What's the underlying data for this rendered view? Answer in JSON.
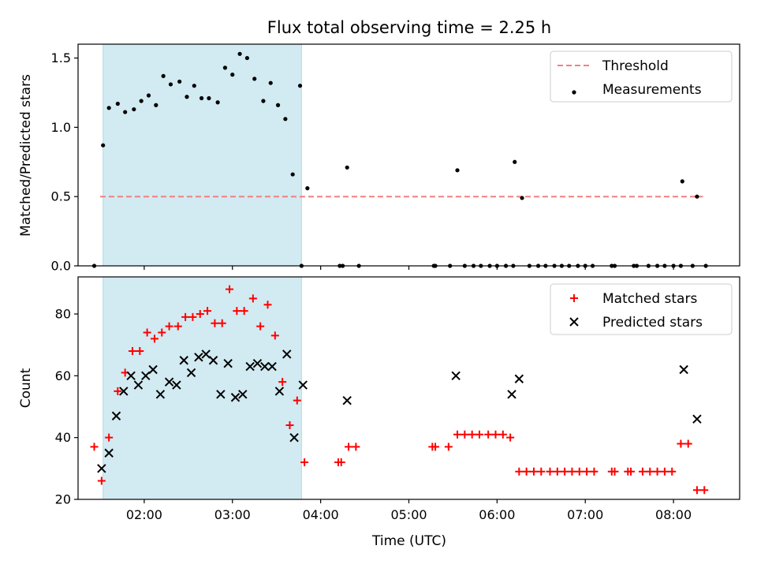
{
  "chart_data": [
    {
      "type": "scatter",
      "title": "Flux total observing time = 2.25 h",
      "ylabel": "Matched/Predicted stars",
      "xlabel": "",
      "xlim": [
        "01:15",
        "08:45"
      ],
      "ylim": [
        0,
        1.6
      ],
      "yticks": [
        "0.0",
        "0.5",
        "1.0",
        "1.5"
      ],
      "highlight_span": [
        "01:32",
        "03:47"
      ],
      "highlight_color": "#add8e6",
      "grid": false,
      "legend": "top-right",
      "legend_entries": [
        "Threshold",
        "Measurements"
      ],
      "threshold": {
        "name": "Threshold",
        "value": 0.5,
        "x": [
          "01:30",
          "08:20"
        ],
        "color": "#f08080",
        "style": "dashed"
      },
      "series": [
        {
          "name": "Measurements",
          "color": "#000000",
          "marker": "dot",
          "points": [
            [
              "01:26",
              0
            ],
            [
              "01:32",
              0.87
            ],
            [
              "01:36",
              1.14
            ],
            [
              "01:42",
              1.17
            ],
            [
              "01:47",
              1.11
            ],
            [
              "01:53",
              1.13
            ],
            [
              "01:58",
              1.19
            ],
            [
              "02:03",
              1.23
            ],
            [
              "02:08",
              1.16
            ],
            [
              "02:13",
              1.37
            ],
            [
              "02:18",
              1.31
            ],
            [
              "02:24",
              1.33
            ],
            [
              "02:29",
              1.22
            ],
            [
              "02:34",
              1.3
            ],
            [
              "02:39",
              1.21
            ],
            [
              "02:44",
              1.21
            ],
            [
              "02:50",
              1.18
            ],
            [
              "02:55",
              1.43
            ],
            [
              "03:00",
              1.38
            ],
            [
              "03:05",
              1.53
            ],
            [
              "03:10",
              1.5
            ],
            [
              "03:15",
              1.35
            ],
            [
              "03:21",
              1.19
            ],
            [
              "03:26",
              1.32
            ],
            [
              "03:31",
              1.16
            ],
            [
              "03:36",
              1.06
            ],
            [
              "03:41",
              0.66
            ],
            [
              "03:46",
              1.3
            ],
            [
              "03:51",
              0.56
            ],
            [
              "03:47",
              0
            ],
            [
              "04:13",
              0
            ],
            [
              "04:15",
              0
            ],
            [
              "04:18",
              0.71
            ],
            [
              "04:26",
              0
            ],
            [
              "05:17",
              0
            ],
            [
              "05:18",
              0
            ],
            [
              "05:28",
              0
            ],
            [
              "05:33",
              0.69
            ],
            [
              "05:38",
              0
            ],
            [
              "05:44",
              0
            ],
            [
              "05:49",
              0
            ],
            [
              "05:55",
              0
            ],
            [
              "06:00",
              0
            ],
            [
              "06:06",
              0
            ],
            [
              "06:11",
              0
            ],
            [
              "06:12",
              0.75
            ],
            [
              "06:17",
              0.49
            ],
            [
              "06:22",
              0
            ],
            [
              "06:28",
              0
            ],
            [
              "06:33",
              0
            ],
            [
              "06:39",
              0
            ],
            [
              "06:44",
              0
            ],
            [
              "06:49",
              0
            ],
            [
              "06:55",
              0
            ],
            [
              "07:00",
              0
            ],
            [
              "07:05",
              0
            ],
            [
              "07:18",
              0
            ],
            [
              "07:20",
              0
            ],
            [
              "07:33",
              0
            ],
            [
              "07:35",
              0
            ],
            [
              "07:43",
              0
            ],
            [
              "07:49",
              0
            ],
            [
              "07:54",
              0
            ],
            [
              "08:00",
              0
            ],
            [
              "08:05",
              0
            ],
            [
              "08:06",
              0.61
            ],
            [
              "08:13",
              0
            ],
            [
              "08:16",
              0.5
            ],
            [
              "08:22",
              0
            ]
          ]
        }
      ]
    },
    {
      "type": "scatter",
      "title": "",
      "ylabel": "Count",
      "xlabel": "Time (UTC)",
      "xlim": [
        "01:15",
        "08:45"
      ],
      "ylim": [
        20,
        92
      ],
      "yticks": [
        "20",
        "40",
        "60",
        "80"
      ],
      "xticks": [
        "02:00",
        "03:00",
        "04:00",
        "05:00",
        "06:00",
        "07:00",
        "08:00"
      ],
      "highlight_span": [
        "01:32",
        "03:47"
      ],
      "highlight_color": "#add8e6",
      "grid": false,
      "legend": "top-right",
      "legend_entries": [
        "Matched stars",
        "Predicted stars"
      ],
      "series": [
        {
          "name": "Matched stars",
          "color": "#ff0000",
          "marker": "plus",
          "points": [
            [
              "01:26",
              37
            ],
            [
              "01:31",
              26
            ],
            [
              "01:36",
              40
            ],
            [
              "01:42",
              55
            ],
            [
              "01:47",
              61
            ],
            [
              "01:52",
              68
            ],
            [
              "01:57",
              68
            ],
            [
              "02:02",
              74
            ],
            [
              "02:07",
              72
            ],
            [
              "02:12",
              74
            ],
            [
              "02:17",
              76
            ],
            [
              "02:23",
              76
            ],
            [
              "02:28",
              79
            ],
            [
              "02:33",
              79
            ],
            [
              "02:38",
              80
            ],
            [
              "02:43",
              81
            ],
            [
              "02:48",
              77
            ],
            [
              "02:53",
              77
            ],
            [
              "02:58",
              88
            ],
            [
              "03:03",
              81
            ],
            [
              "03:08",
              81
            ],
            [
              "03:14",
              85
            ],
            [
              "03:19",
              76
            ],
            [
              "03:24",
              83
            ],
            [
              "03:29",
              73
            ],
            [
              "03:34",
              58
            ],
            [
              "03:39",
              44
            ],
            [
              "03:44",
              52
            ],
            [
              "03:49",
              32
            ],
            [
              "04:12",
              32
            ],
            [
              "04:14",
              32
            ],
            [
              "04:19",
              37
            ],
            [
              "04:24",
              37
            ],
            [
              "05:16",
              37
            ],
            [
              "05:18",
              37
            ],
            [
              "05:27",
              37
            ],
            [
              "05:33",
              41
            ],
            [
              "05:38",
              41
            ],
            [
              "05:43",
              41
            ],
            [
              "05:48",
              41
            ],
            [
              "05:54",
              41
            ],
            [
              "05:59",
              41
            ],
            [
              "06:04",
              41
            ],
            [
              "06:09",
              40
            ],
            [
              "06:15",
              29
            ],
            [
              "06:20",
              29
            ],
            [
              "06:25",
              29
            ],
            [
              "06:30",
              29
            ],
            [
              "06:36",
              29
            ],
            [
              "06:41",
              29
            ],
            [
              "06:46",
              29
            ],
            [
              "06:51",
              29
            ],
            [
              "06:56",
              29
            ],
            [
              "07:01",
              29
            ],
            [
              "07:06",
              29
            ],
            [
              "07:18",
              29
            ],
            [
              "07:20",
              29
            ],
            [
              "07:29",
              29
            ],
            [
              "07:31",
              29
            ],
            [
              "07:39",
              29
            ],
            [
              "07:44",
              29
            ],
            [
              "07:49",
              29
            ],
            [
              "07:54",
              29
            ],
            [
              "07:59",
              29
            ],
            [
              "08:05",
              38
            ],
            [
              "08:10",
              38
            ],
            [
              "08:16",
              23
            ],
            [
              "08:21",
              23
            ]
          ]
        },
        {
          "name": "Predicted stars",
          "color": "#000000",
          "marker": "x",
          "points": [
            [
              "01:31",
              30
            ],
            [
              "01:36",
              35
            ],
            [
              "01:41",
              47
            ],
            [
              "01:46",
              55
            ],
            [
              "01:51",
              60
            ],
            [
              "01:56",
              57
            ],
            [
              "02:01",
              60
            ],
            [
              "02:06",
              62
            ],
            [
              "02:11",
              54
            ],
            [
              "02:17",
              58
            ],
            [
              "02:22",
              57
            ],
            [
              "02:27",
              65
            ],
            [
              "02:32",
              61
            ],
            [
              "02:37",
              66
            ],
            [
              "02:42",
              67
            ],
            [
              "02:47",
              65
            ],
            [
              "02:52",
              54
            ],
            [
              "02:57",
              64
            ],
            [
              "03:02",
              53
            ],
            [
              "03:07",
              54
            ],
            [
              "03:12",
              63
            ],
            [
              "03:17",
              64
            ],
            [
              "03:22",
              63
            ],
            [
              "03:27",
              63
            ],
            [
              "03:32",
              55
            ],
            [
              "03:37",
              67
            ],
            [
              "03:42",
              40
            ],
            [
              "03:48",
              57
            ],
            [
              "04:18",
              52
            ],
            [
              "05:32",
              60
            ],
            [
              "06:10",
              54
            ],
            [
              "06:15",
              59
            ],
            [
              "08:07",
              62
            ],
            [
              "08:16",
              46
            ]
          ]
        }
      ]
    }
  ]
}
